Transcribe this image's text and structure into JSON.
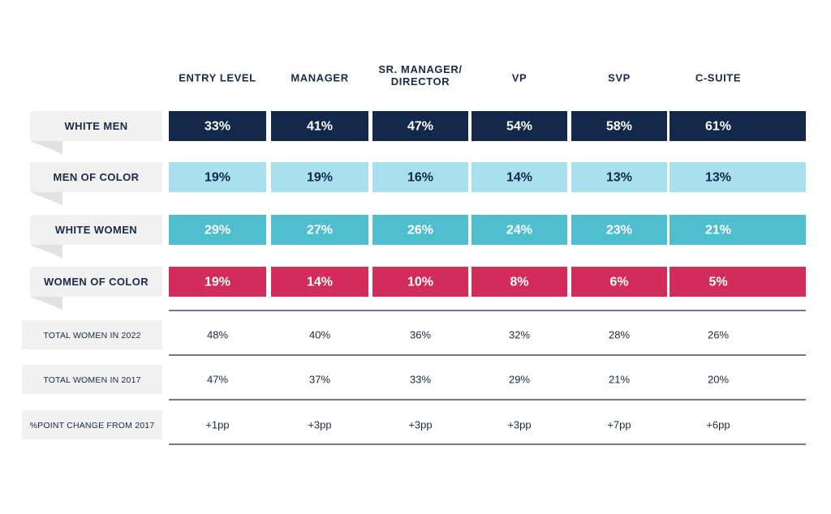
{
  "chart_data": {
    "type": "table",
    "title": "",
    "columns": [
      "ENTRY LEVEL",
      "MANAGER",
      "SR. MANAGER/\nDIRECTOR",
      "VP",
      "SVP",
      "C-SUITE"
    ],
    "series": [
      {
        "name": "WHITE MEN",
        "values": [
          33,
          41,
          47,
          54,
          58,
          61
        ],
        "labels": [
          "33%",
          "41%",
          "47%",
          "54%",
          "58%",
          "61%"
        ],
        "color": "#13284a",
        "text_color": "#ffffff"
      },
      {
        "name": "MEN OF COLOR",
        "values": [
          19,
          19,
          16,
          14,
          13,
          13
        ],
        "labels": [
          "19%",
          "19%",
          "16%",
          "14%",
          "13%",
          "13%"
        ],
        "color": "#a8e0ee",
        "text_color": "#13284a"
      },
      {
        "name": "WHITE WOMEN",
        "values": [
          29,
          27,
          26,
          24,
          23,
          21
        ],
        "labels": [
          "29%",
          "27%",
          "26%",
          "24%",
          "23%",
          "21%"
        ],
        "color": "#4fbecf",
        "text_color": "#ffffff"
      },
      {
        "name": "WOMEN OF COLOR",
        "values": [
          19,
          14,
          10,
          8,
          6,
          5
        ],
        "labels": [
          "19%",
          "14%",
          "10%",
          "8%",
          "6%",
          "5%"
        ],
        "color": "#d12c5a",
        "text_color": "#ffffff"
      }
    ],
    "totals": [
      {
        "name": "TOTAL WOMEN IN 2022",
        "values": [
          "48%",
          "40%",
          "36%",
          "32%",
          "28%",
          "26%"
        ]
      },
      {
        "name": "TOTAL WOMEN IN 2017",
        "values": [
          "47%",
          "37%",
          "33%",
          "29%",
          "21%",
          "20%"
        ]
      },
      {
        "name": "%POINT CHANGE FROM 2017",
        "values": [
          "+1pp",
          "+3pp",
          "+3pp",
          "+3pp",
          "+7pp",
          "+6pp"
        ]
      }
    ]
  },
  "colors": {
    "label_box": "#f1f1f2",
    "label_fold": "#e2e2e4",
    "divider": "#1b2a4a",
    "text": "#1b2a4a"
  }
}
